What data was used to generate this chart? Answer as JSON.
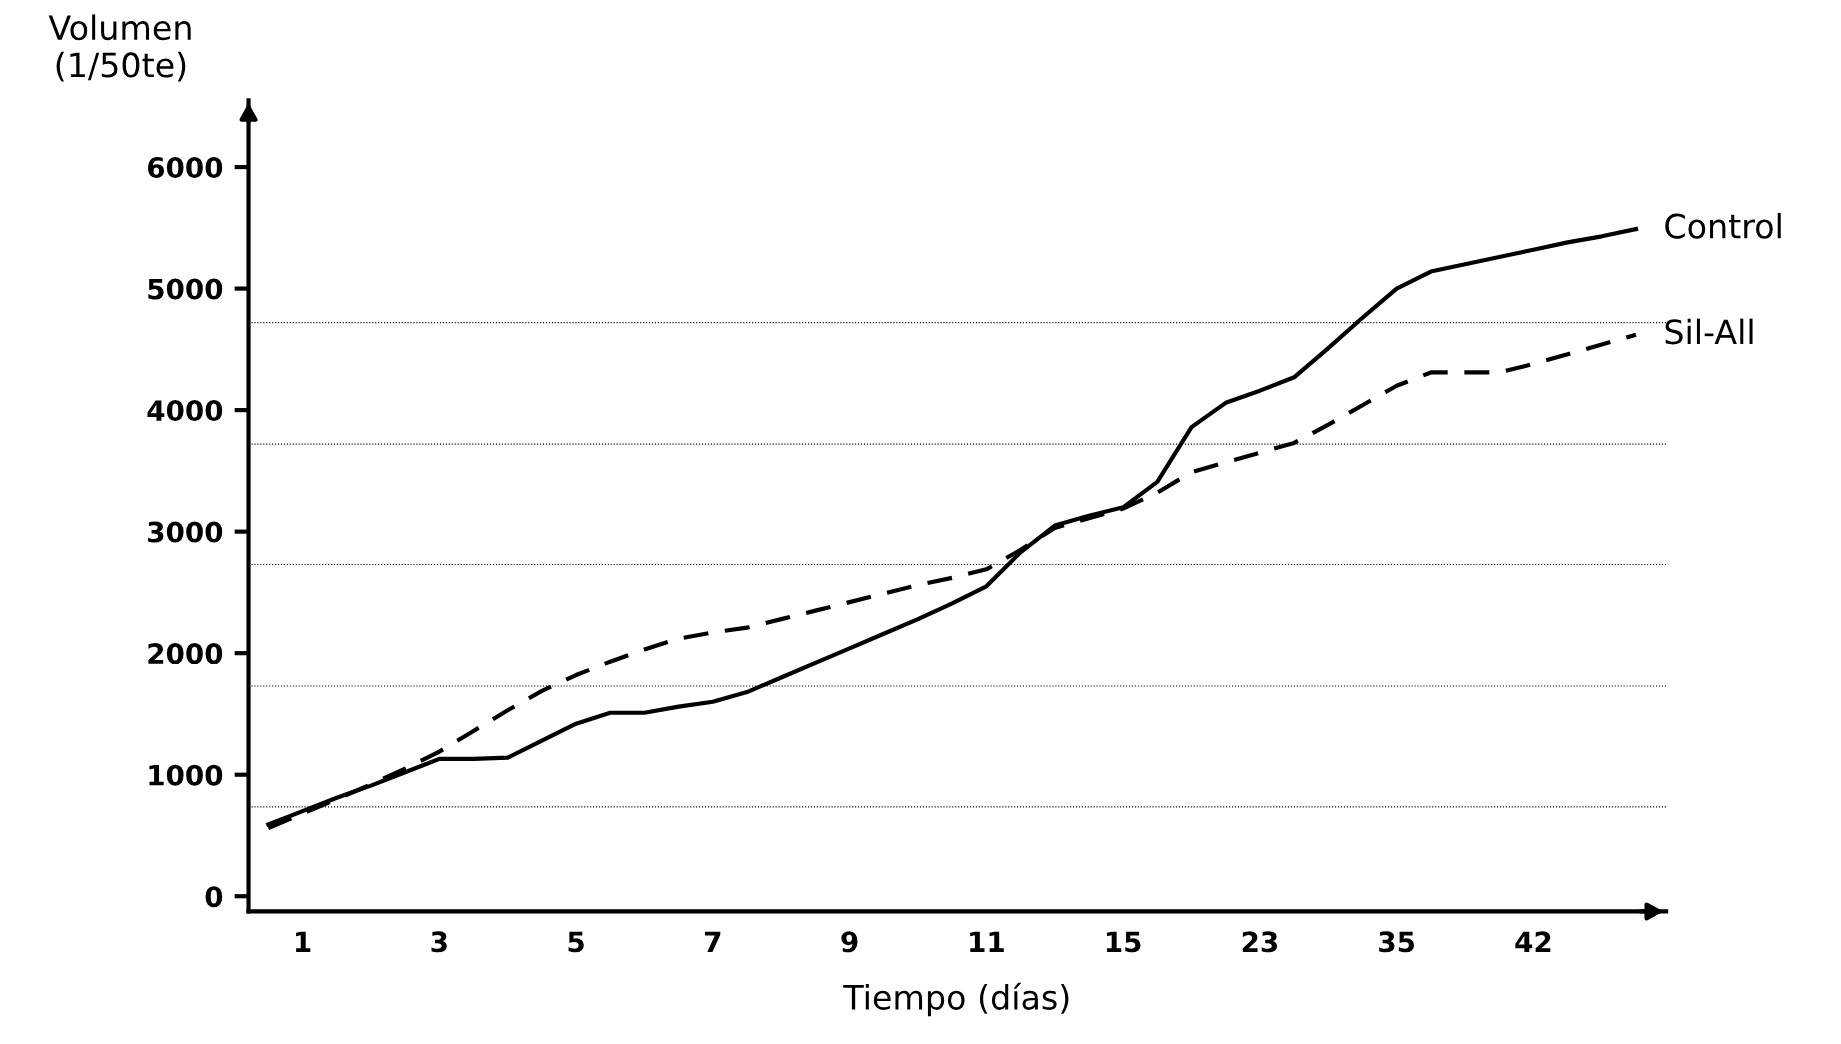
{
  "chart_data": {
    "type": "line",
    "xlabel": "Tiempo (días)",
    "ylabel": "Volumen\n(1/50te)",
    "categories": [
      null,
      "1",
      null,
      null,
      null,
      "3",
      null,
      null,
      null,
      "5",
      null,
      null,
      null,
      "7",
      null,
      null,
      null,
      "9",
      null,
      null,
      null,
      "11",
      null,
      null,
      null,
      "15",
      null,
      null,
      null,
      "23",
      null,
      null,
      null,
      "35",
      null,
      null,
      null,
      "42",
      null,
      null,
      null
    ],
    "ylim": [
      -125,
      6550
    ],
    "yticks": [
      0,
      1000,
      2000,
      3000,
      4000,
      5000,
      6000
    ],
    "grid": false,
    "legend": false,
    "marker": "none",
    "ref_lines": [
      {
        "axis": "y",
        "value": 4720,
        "color": "#000000",
        "line_style": "dotted"
      },
      {
        "axis": "y",
        "value": 3720,
        "color": "#000000",
        "line_style": "dotted"
      },
      {
        "axis": "y",
        "value": 2730,
        "color": "#000000",
        "line_style": "dotted"
      },
      {
        "axis": "y",
        "value": 1730,
        "color": "#000000",
        "line_style": "dotted"
      },
      {
        "axis": "y",
        "value": 735,
        "color": "#000000",
        "line_style": "dotted"
      }
    ],
    "series": [
      {
        "name": "Control",
        "color": "#000000",
        "line_style": "solid",
        "values": [
          590,
          700,
          810,
          910,
          1020,
          1130,
          1130,
          1140,
          1280,
          1420,
          1510,
          1510,
          1560,
          1600,
          1680,
          1800,
          1920,
          2040,
          2160,
          2280,
          2410,
          2550,
          2830,
          3050,
          3130,
          3200,
          3410,
          3860,
          4060,
          4160,
          4270,
          4510,
          4760,
          5000,
          5140,
          5200,
          5260,
          5320,
          5380,
          5430,
          5490
        ]
      },
      {
        "name": "Sil-All",
        "color": "#000000",
        "line_style": "dashed",
        "values": [
          560,
          680,
          800,
          920,
          1050,
          1190,
          1360,
          1530,
          1690,
          1820,
          1930,
          2030,
          2120,
          2170,
          2210,
          2280,
          2350,
          2420,
          2490,
          2560,
          2620,
          2690,
          2850,
          3030,
          3110,
          3190,
          3320,
          3490,
          3570,
          3650,
          3730,
          3880,
          4040,
          4200,
          4310,
          4310,
          4310,
          4380,
          4460,
          4540,
          4620
        ]
      }
    ]
  }
}
